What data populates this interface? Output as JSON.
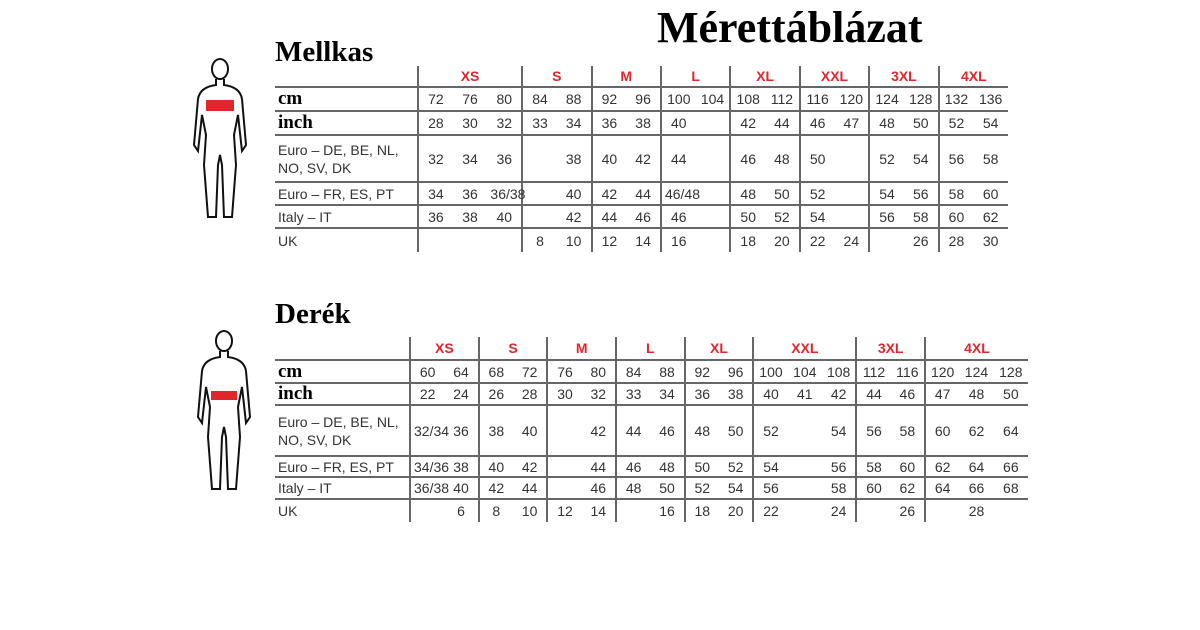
{
  "title": "Mérettáblázat",
  "colors": {
    "size_header": "#e0262b",
    "figure_band": "#e0262b"
  },
  "tables": [
    {
      "id": "chest",
      "heading": "Mellkas",
      "figure_icon": "human-figure-chest-icon",
      "groups": [
        {
          "label": "XS",
          "span": 3
        },
        {
          "label": "S",
          "span": 2
        },
        {
          "label": "M",
          "span": 2
        },
        {
          "label": "L",
          "span": 2
        },
        {
          "label": "XL",
          "span": 2
        },
        {
          "label": "XXL",
          "span": 2
        },
        {
          "label": "3XL",
          "span": 2
        },
        {
          "label": "4XL",
          "span": 2
        }
      ],
      "rows": [
        {
          "label": "cm",
          "big": true,
          "values": [
            "72",
            "76",
            "80",
            "84",
            "88",
            "92",
            "96",
            "100",
            "104",
            "108",
            "112",
            "116",
            "120",
            "124",
            "128",
            "132",
            "136"
          ]
        },
        {
          "label": "inch",
          "big": true,
          "values": [
            "28",
            "30",
            "32",
            "33",
            "34",
            "36",
            "38",
            "40",
            "",
            "42",
            "44",
            "46",
            "47",
            "48",
            "50",
            "52",
            "54"
          ]
        },
        {
          "label": "Euro –  DE, BE, NL, NO, SV, DK",
          "values": [
            "32",
            "34",
            "36",
            "",
            "38",
            "40",
            "42",
            "44",
            "",
            "46",
            "48",
            "50",
            "",
            "52",
            "54",
            "56",
            "58"
          ]
        },
        {
          "label": "Euro – FR, ES, PT",
          "values": [
            "34",
            "36",
            "36/38",
            "",
            "40",
            "42",
            "44",
            "46/48",
            "",
            "48",
            "50",
            "52",
            "",
            "54",
            "56",
            "58",
            "60"
          ]
        },
        {
          "label": "Italy – IT",
          "values": [
            "36",
            "38",
            "40",
            "",
            "42",
            "44",
            "46",
            "46",
            "",
            "50",
            "52",
            "54",
            "",
            "56",
            "58",
            "60",
            "62"
          ]
        },
        {
          "label": "UK",
          "values": [
            "",
            "",
            "",
            "8",
            "10",
            "12",
            "14",
            "16",
            "",
            "18",
            "20",
            "22",
            "24",
            "",
            "26",
            "28",
            "30"
          ]
        }
      ]
    },
    {
      "id": "waist",
      "heading": "Derék",
      "figure_icon": "human-figure-waist-icon",
      "groups": [
        {
          "label": "XS",
          "span": 2
        },
        {
          "label": "S",
          "span": 2
        },
        {
          "label": "M",
          "span": 2
        },
        {
          "label": "L",
          "span": 2
        },
        {
          "label": "XL",
          "span": 2
        },
        {
          "label": "XXL",
          "span": 3
        },
        {
          "label": "3XL",
          "span": 2
        },
        {
          "label": "4XL",
          "span": 3
        }
      ],
      "rows": [
        {
          "label": "cm",
          "big": true,
          "values": [
            "60",
            "64",
            "68",
            "72",
            "76",
            "80",
            "84",
            "88",
            "92",
            "96",
            "100",
            "104",
            "108",
            "112",
            "116",
            "120",
            "124",
            "128"
          ]
        },
        {
          "label": "inch",
          "big": true,
          "values": [
            "22",
            "24",
            "26",
            "28",
            "30",
            "32",
            "33",
            "34",
            "36",
            "38",
            "40",
            "41",
            "42",
            "44",
            "46",
            "47",
            "48",
            "50"
          ]
        },
        {
          "label": "Euro – DE, BE, NL, NO, SV, DK",
          "values": [
            "32/34",
            "36",
            "38",
            "40",
            "",
            "42",
            "44",
            "46",
            "48",
            "50",
            "52",
            "",
            "54",
            "56",
            "58",
            "60",
            "62",
            "64"
          ]
        },
        {
          "label": "Euro – FR, ES, PT",
          "values": [
            "34/36",
            "38",
            "40",
            "42",
            "",
            "44",
            "46",
            "48",
            "50",
            "52",
            "54",
            "",
            "56",
            "58",
            "60",
            "62",
            "64",
            "66"
          ]
        },
        {
          "label": "Italy – IT",
          "values": [
            "36/38",
            "40",
            "42",
            "44",
            "",
            "46",
            "48",
            "50",
            "52",
            "54",
            "56",
            "",
            "58",
            "60",
            "62",
            "64",
            "66",
            "68"
          ]
        },
        {
          "label": "UK",
          "values": [
            "",
            "6",
            "8",
            "10",
            "12",
            "14",
            "",
            "16",
            "18",
            "20",
            "22",
            "",
            "24",
            "",
            "26",
            "",
            "28",
            ""
          ]
        }
      ]
    }
  ]
}
